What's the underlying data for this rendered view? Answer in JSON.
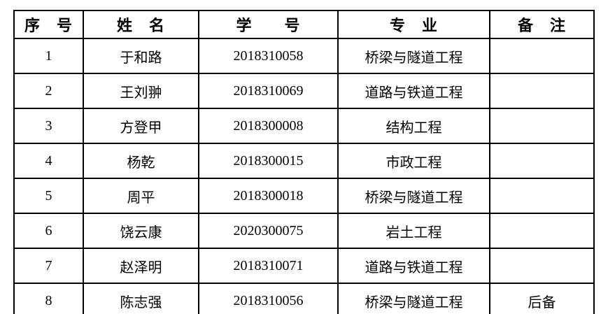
{
  "page": {
    "background_color": "#ffffff",
    "text_color": "#000000",
    "border_color": "#000000"
  },
  "table": {
    "headers": {
      "index": "序　号",
      "name": "姓　名",
      "student_id": "学　　号",
      "major": "专　业",
      "remark": "备　注"
    },
    "rows": [
      {
        "index": "1",
        "name": "于和路",
        "student_id": "2018310058",
        "major": "桥梁与隧道工程",
        "remark": ""
      },
      {
        "index": "2",
        "name": "王刘翀",
        "student_id": "2018310069",
        "major": "道路与铁道工程",
        "remark": ""
      },
      {
        "index": "3",
        "name": "方登甲",
        "student_id": "2018300008",
        "major": "结构工程",
        "remark": ""
      },
      {
        "index": "4",
        "name": "杨乾",
        "student_id": "2018300015",
        "major": "市政工程",
        "remark": ""
      },
      {
        "index": "5",
        "name": "周平",
        "student_id": "2018300018",
        "major": "桥梁与隧道工程",
        "remark": ""
      },
      {
        "index": "6",
        "name": "饶云康",
        "student_id": "2020300075",
        "major": "岩土工程",
        "remark": ""
      },
      {
        "index": "7",
        "name": "赵泽明",
        "student_id": "2018310071",
        "major": "道路与铁道工程",
        "remark": ""
      },
      {
        "index": "8",
        "name": "陈志强",
        "student_id": "2018310056",
        "major": "桥梁与隧道工程",
        "remark": "后备"
      }
    ]
  }
}
